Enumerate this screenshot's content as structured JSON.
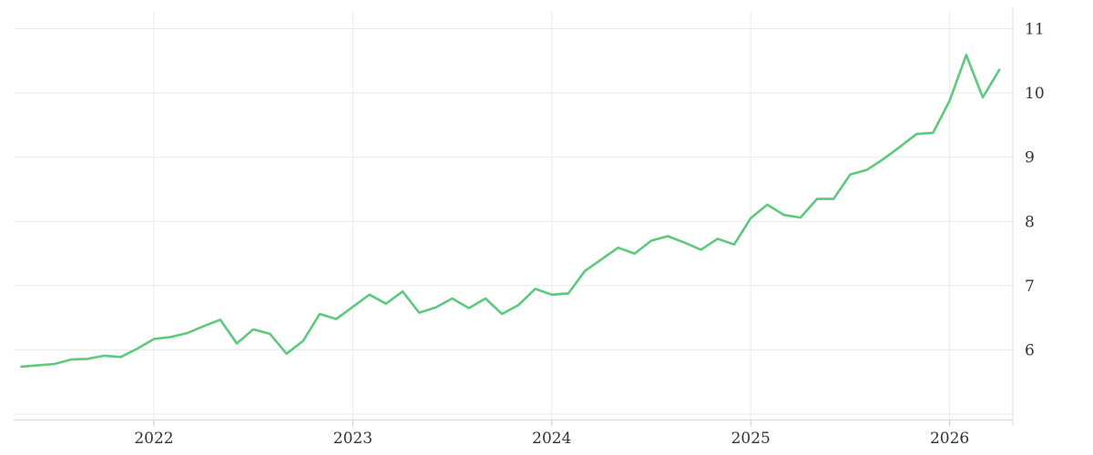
{
  "chart": {
    "background": "#ffffff",
    "line_color": "#5dc97d",
    "grid_color": "#ebebeb",
    "border_color": "#d9d9d9",
    "tick_color": "#c9c9c9",
    "label_color": "#333333"
  },
  "chart_data": {
    "type": "line",
    "title": "",
    "grid": true,
    "legend": "none",
    "y_axis_side": "right",
    "ylim": [
      4.91,
      11.45
    ],
    "y_gridlines": [
      11,
      10,
      9,
      8,
      7,
      6,
      5
    ],
    "y_tick_labels": [
      "11",
      "10",
      "9",
      "8",
      "7",
      "6"
    ],
    "x_tick_labels": [
      "2022",
      "2023",
      "2024",
      "2025",
      "2026"
    ],
    "x": [
      "2021-05",
      "2021-06",
      "2021-07",
      "2021-08",
      "2021-09",
      "2021-10",
      "2021-11",
      "2021-12",
      "2022-01",
      "2022-02",
      "2022-03",
      "2022-04",
      "2022-05",
      "2022-06",
      "2022-07",
      "2022-08",
      "2022-09",
      "2022-10",
      "2022-11",
      "2022-12",
      "2023-01",
      "2023-02",
      "2023-03",
      "2023-04",
      "2023-05",
      "2023-06",
      "2023-07",
      "2023-08",
      "2023-09",
      "2023-10",
      "2023-11",
      "2023-12",
      "2024-01",
      "2024-02",
      "2024-03",
      "2024-04",
      "2024-05",
      "2024-06",
      "2024-07",
      "2024-08",
      "2024-09",
      "2024-10",
      "2024-11",
      "2024-12",
      "2025-01",
      "2025-02",
      "2025-03",
      "2025-04",
      "2025-05",
      "2025-06",
      "2025-07",
      "2025-08",
      "2025-09",
      "2025-10",
      "2025-11",
      "2025-12",
      "2026-01",
      "2026-02",
      "2026-03",
      "2026-04"
    ],
    "series": [
      {
        "name": "value",
        "color": "#5dc97d",
        "values": [
          5.74,
          5.76,
          5.78,
          5.85,
          5.86,
          5.91,
          5.89,
          6.02,
          6.17,
          6.2,
          6.26,
          6.37,
          6.47,
          6.1,
          6.32,
          6.25,
          5.94,
          6.14,
          6.56,
          6.48,
          6.67,
          6.86,
          6.72,
          6.91,
          6.58,
          6.66,
          6.8,
          6.65,
          6.8,
          6.56,
          6.7,
          6.95,
          6.86,
          6.88,
          7.23,
          7.41,
          7.59,
          7.5,
          7.7,
          7.77,
          7.67,
          7.56,
          7.73,
          7.64,
          8.05,
          8.26,
          8.1,
          8.06,
          8.35,
          8.35,
          8.73,
          8.8,
          8.97,
          9.16,
          9.36,
          9.38,
          9.88,
          10.59,
          9.93,
          10.36
        ]
      }
    ]
  }
}
